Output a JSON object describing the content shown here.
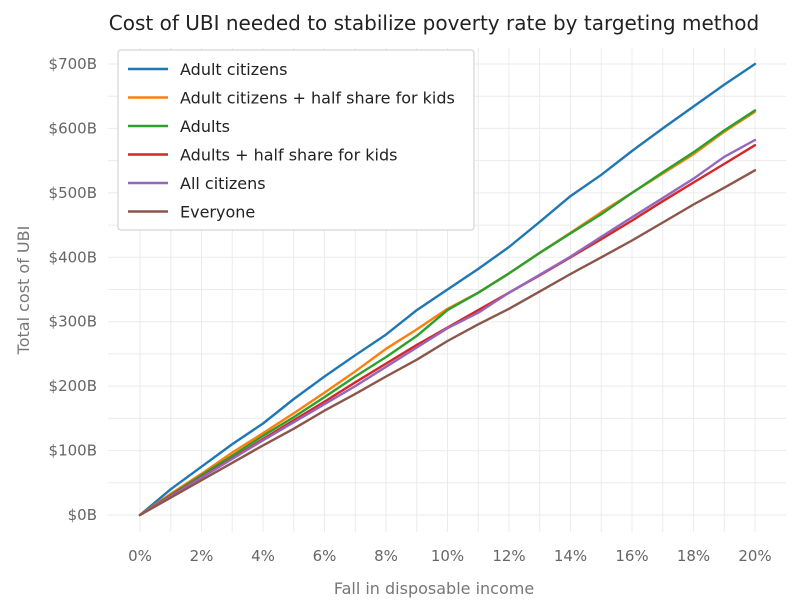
{
  "chart_data": {
    "type": "line",
    "title": "Cost of UBI needed to stabilize poverty rate by targeting method",
    "xlabel": "Fall in disposable income",
    "ylabel": "Total cost of UBI",
    "xlim": [
      0,
      20
    ],
    "ylim": [
      0,
      700
    ],
    "x_ticks": [
      0,
      2,
      4,
      6,
      8,
      10,
      12,
      14,
      16,
      18,
      20
    ],
    "x_tick_labels": [
      "0%",
      "2%",
      "4%",
      "6%",
      "8%",
      "10%",
      "12%",
      "14%",
      "16%",
      "18%",
      "20%"
    ],
    "y_ticks": [
      0,
      100,
      200,
      300,
      400,
      500,
      600,
      700
    ],
    "y_tick_labels": [
      "$0B",
      "$100B",
      "$200B",
      "$300B",
      "$400B",
      "$500B",
      "$600B",
      "$700B"
    ],
    "grid": true,
    "legend_position": "top-left",
    "x": [
      0,
      1,
      2,
      3,
      4,
      5,
      6,
      7,
      8,
      9,
      10,
      11,
      12,
      13,
      14,
      15,
      16,
      17,
      18,
      19,
      20
    ],
    "series": [
      {
        "name": "Adult citizens",
        "color": "#1f77b4",
        "values": [
          0,
          40,
          75,
          110,
          142,
          180,
          215,
          248,
          280,
          318,
          350,
          382,
          416,
          455,
          495,
          528,
          565,
          600,
          634,
          668,
          700
        ]
      },
      {
        "name": "Adult citizens + half share for kids",
        "color": "#ff7f0e",
        "values": [
          0,
          33,
          64,
          97,
          127,
          158,
          190,
          223,
          258,
          288,
          320,
          345,
          375,
          407,
          438,
          470,
          500,
          530,
          560,
          595,
          626
        ]
      },
      {
        "name": "Adults",
        "color": "#2ca02c",
        "values": [
          0,
          31,
          62,
          92,
          123,
          152,
          183,
          215,
          245,
          278,
          318,
          345,
          375,
          407,
          437,
          467,
          500,
          532,
          563,
          597,
          628
        ]
      },
      {
        "name": "Adults + half share for kids",
        "color": "#d62728",
        "values": [
          0,
          30,
          59,
          88,
          118,
          147,
          176,
          206,
          235,
          264,
          291,
          318,
          345,
          372,
          400,
          428,
          457,
          487,
          516,
          545,
          574
        ]
      },
      {
        "name": "All citizens",
        "color": "#9467bd",
        "values": [
          0,
          29,
          58,
          87,
          116,
          144,
          172,
          200,
          230,
          260,
          290,
          314,
          345,
          373,
          401,
          432,
          462,
          492,
          522,
          556,
          582
        ]
      },
      {
        "name": "Everyone",
        "color": "#8c564b",
        "values": [
          0,
          27,
          54,
          81,
          108,
          134,
          162,
          188,
          215,
          241,
          270,
          296,
          320,
          347,
          374,
          400,
          426,
          454,
          482,
          508,
          535
        ]
      }
    ]
  }
}
